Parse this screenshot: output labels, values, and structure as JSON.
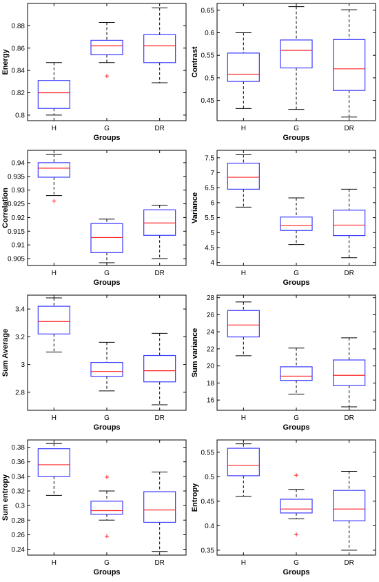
{
  "colors": {
    "box": "#3a3aff",
    "median": "#ff2020",
    "outlier": "#ff2020",
    "whisker": "#000000",
    "axis": "#000000"
  },
  "chart_data": [
    {
      "type": "boxplot",
      "xlabel": "Groups",
      "ylabel": "Energy",
      "categories": [
        "H",
        "G",
        "DR"
      ],
      "ylim": [
        0.795,
        0.9
      ],
      "yticks": [
        "0.8",
        "0.82",
        "0.84",
        "0.86",
        "0.88"
      ],
      "ytick_values": [
        0.8,
        0.82,
        0.84,
        0.86,
        0.88
      ],
      "boxes": [
        {
          "min": 0.8,
          "q1": 0.806,
          "median": 0.82,
          "q3": 0.831,
          "max": 0.847,
          "outliers": []
        },
        {
          "min": 0.847,
          "q1": 0.854,
          "median": 0.862,
          "q3": 0.867,
          "max": 0.883,
          "outliers": [
            0.835
          ]
        },
        {
          "min": 0.829,
          "q1": 0.847,
          "median": 0.862,
          "q3": 0.872,
          "max": 0.896,
          "outliers": []
        }
      ]
    },
    {
      "type": "boxplot",
      "xlabel": "Groups",
      "ylabel": "Contrast",
      "categories": [
        "H",
        "G",
        "DR"
      ],
      "ylim": [
        0.405,
        0.665
      ],
      "yticks": [
        "0.45",
        "0.5",
        "0.55",
        "0.6",
        "0.65"
      ],
      "ytick_values": [
        0.45,
        0.5,
        0.55,
        0.6,
        0.65
      ],
      "boxes": [
        {
          "min": 0.432,
          "q1": 0.492,
          "median": 0.508,
          "q3": 0.555,
          "max": 0.6,
          "outliers": []
        },
        {
          "min": 0.43,
          "q1": 0.522,
          "median": 0.561,
          "q3": 0.584,
          "max": 0.658,
          "outliers": []
        },
        {
          "min": 0.413,
          "q1": 0.472,
          "median": 0.52,
          "q3": 0.585,
          "max": 0.651,
          "outliers": []
        }
      ]
    },
    {
      "type": "boxplot",
      "xlabel": "Groups",
      "ylabel": "Correlation",
      "categories": [
        "H",
        "G",
        "DR"
      ],
      "ylim": [
        0.9025,
        0.9445
      ],
      "yticks": [
        "0.905",
        "0.91",
        "0.915",
        "0.92",
        "0.925",
        "0.93",
        "0.935",
        "0.94"
      ],
      "ytick_values": [
        0.905,
        0.91,
        0.915,
        0.92,
        0.925,
        0.93,
        0.935,
        0.94
      ],
      "boxes": [
        {
          "min": 0.928,
          "q1": 0.9347,
          "median": 0.938,
          "q3": 0.94,
          "max": 0.943,
          "outliers": [
            0.926
          ]
        },
        {
          "min": 0.9035,
          "q1": 0.9072,
          "median": 0.9127,
          "q3": 0.9178,
          "max": 0.9194,
          "outliers": []
        },
        {
          "min": 0.905,
          "q1": 0.9135,
          "median": 0.918,
          "q3": 0.9228,
          "max": 0.9245,
          "outliers": []
        }
      ]
    },
    {
      "type": "boxplot",
      "xlabel": "Groups",
      "ylabel": "Variance",
      "categories": [
        "H",
        "G",
        "DR"
      ],
      "ylim": [
        3.9,
        7.75
      ],
      "yticks": [
        "4",
        "4.5",
        "5",
        "5.5",
        "6",
        "6.5",
        "7",
        "7.5"
      ],
      "ytick_values": [
        4,
        4.5,
        5,
        5.5,
        6,
        6.5,
        7,
        7.5
      ],
      "boxes": [
        {
          "min": 5.85,
          "q1": 6.45,
          "median": 6.85,
          "q3": 7.32,
          "max": 7.6,
          "outliers": []
        },
        {
          "min": 4.6,
          "q1": 5.07,
          "median": 5.23,
          "q3": 5.52,
          "max": 6.16,
          "outliers": []
        },
        {
          "min": 4.16,
          "q1": 4.9,
          "median": 5.25,
          "q3": 5.75,
          "max": 6.45,
          "outliers": []
        }
      ]
    },
    {
      "type": "boxplot",
      "xlabel": "Groups",
      "ylabel": "Sum Average",
      "categories": [
        "H",
        "G",
        "DR"
      ],
      "ylim": [
        2.67,
        3.5
      ],
      "yticks": [
        "2.8",
        "3",
        "3.2",
        "3.4"
      ],
      "ytick_values": [
        2.8,
        3.0,
        3.2,
        3.4
      ],
      "boxes": [
        {
          "min": 3.09,
          "q1": 3.22,
          "median": 3.31,
          "q3": 3.42,
          "max": 3.48,
          "outliers": []
        },
        {
          "min": 2.81,
          "q1": 2.915,
          "median": 2.95,
          "q3": 3.015,
          "max": 3.16,
          "outliers": []
        },
        {
          "min": 2.71,
          "q1": 2.875,
          "median": 2.955,
          "q3": 3.065,
          "max": 3.225,
          "outliers": []
        }
      ]
    },
    {
      "type": "boxplot",
      "xlabel": "Groups",
      "ylabel": "Sum variance",
      "categories": [
        "H",
        "G",
        "DR"
      ],
      "ylim": [
        14.8,
        28.3
      ],
      "yticks": [
        "16",
        "18",
        "20",
        "22",
        "24",
        "26",
        "28"
      ],
      "ytick_values": [
        16,
        18,
        20,
        22,
        24,
        26,
        28
      ],
      "boxes": [
        {
          "min": 21.2,
          "q1": 23.4,
          "median": 24.8,
          "q3": 26.5,
          "max": 27.5,
          "outliers": []
        },
        {
          "min": 16.7,
          "q1": 18.3,
          "median": 18.8,
          "q3": 19.9,
          "max": 22.1,
          "outliers": []
        },
        {
          "min": 15.2,
          "q1": 17.7,
          "median": 18.9,
          "q3": 20.7,
          "max": 23.3,
          "outliers": []
        }
      ]
    },
    {
      "type": "boxplot",
      "xlabel": "Groups",
      "ylabel": "Sum entropy",
      "categories": [
        "H",
        "G",
        "DR"
      ],
      "ylim": [
        0.232,
        0.39
      ],
      "yticks": [
        "0.24",
        "0.26",
        "0.28",
        "0.3",
        "0.32",
        "0.34",
        "0.36",
        "0.38"
      ],
      "ytick_values": [
        0.24,
        0.26,
        0.28,
        0.3,
        0.32,
        0.34,
        0.36,
        0.38
      ],
      "boxes": [
        {
          "min": 0.314,
          "q1": 0.34,
          "median": 0.356,
          "q3": 0.378,
          "max": 0.385,
          "outliers": []
        },
        {
          "min": 0.28,
          "q1": 0.288,
          "median": 0.293,
          "q3": 0.306,
          "max": 0.32,
          "outliers": [
            0.339,
            0.258
          ]
        },
        {
          "min": 0.237,
          "q1": 0.277,
          "median": 0.294,
          "q3": 0.319,
          "max": 0.346,
          "outliers": []
        }
      ]
    },
    {
      "type": "boxplot",
      "xlabel": "Groups",
      "ylabel": "Entropy",
      "categories": [
        "H",
        "G",
        "DR"
      ],
      "ylim": [
        0.34,
        0.575
      ],
      "yticks": [
        "0.35",
        "0.4",
        "0.45",
        "0.5",
        "0.55"
      ],
      "ytick_values": [
        0.35,
        0.4,
        0.45,
        0.5,
        0.55
      ],
      "boxes": [
        {
          "min": 0.46,
          "q1": 0.502,
          "median": 0.523,
          "q3": 0.558,
          "max": 0.567,
          "outliers": []
        },
        {
          "min": 0.414,
          "q1": 0.426,
          "median": 0.434,
          "q3": 0.454,
          "max": 0.474,
          "outliers": [
            0.503,
            0.382
          ]
        },
        {
          "min": 0.35,
          "q1": 0.41,
          "median": 0.434,
          "q3": 0.472,
          "max": 0.511,
          "outliers": []
        }
      ]
    }
  ]
}
